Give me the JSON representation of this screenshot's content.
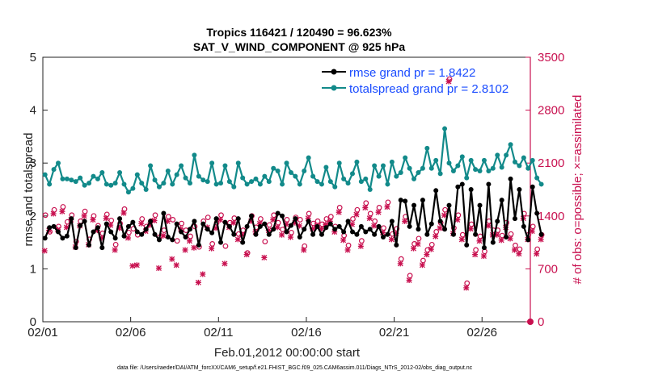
{
  "chart_data": {
    "type": "line",
    "title": "Tropics 116421 / 120490 = 96.623%",
    "subtitle": "SAT_V_WIND_COMPONENT @ 925 hPa",
    "xlabel": "Feb.01,2012 00:00:00 start",
    "ylabel_left": "rmse and totalspread",
    "ylabel_right": "# of obs: o=possible; ×=assimilated",
    "footer": "data file: /Users/raeder/DAI/ATM_forcXX/CAM6_setup/f.e21.FHIST_BGC.f09_025.CAM6assim.011/Diags_NTrS_2012-02/obs_diag_output.nc",
    "x_ticks": [
      "02/01",
      "02/06",
      "02/11",
      "02/16",
      "02/21",
      "02/26"
    ],
    "x_tick_days": [
      0,
      5,
      10,
      15,
      20,
      25
    ],
    "xlim": [
      0,
      27.75
    ],
    "ylim_left": [
      0,
      5
    ],
    "yticks_left": [
      "0",
      "1",
      "2",
      "3",
      "4",
      "5"
    ],
    "ylim_right": [
      0,
      3500
    ],
    "yticks_right": [
      "0",
      "700",
      "1400",
      "2100",
      "2800",
      "3500"
    ],
    "legend": {
      "position": "top-right",
      "entries": [
        "rmse grand pr = 1.8422",
        "totalspread grand pr = 2.8102"
      ]
    },
    "colors": {
      "rmse": "#000000",
      "totalspread": "#128a8a",
      "obs": "#c8104f"
    },
    "x_step_days": 0.25,
    "series": [
      {
        "name": "rmse",
        "axis": "left",
        "values": [
          1.58,
          1.78,
          1.8,
          1.7,
          1.58,
          1.62,
          1.95,
          1.4,
          1.82,
          1.9,
          1.45,
          1.7,
          1.78,
          1.4,
          1.85,
          1.7,
          1.58,
          1.95,
          1.62,
          1.8,
          1.88,
          1.7,
          1.65,
          1.75,
          1.9,
          1.65,
          1.55,
          2.05,
          1.6,
          1.55,
          1.85,
          1.7,
          1.6,
          1.75,
          1.9,
          1.45,
          1.85,
          1.75,
          1.68,
          1.95,
          1.5,
          1.88,
          1.8,
          1.65,
          1.95,
          1.5,
          1.8,
          2.0,
          1.65,
          1.8,
          1.85,
          1.65,
          1.75,
          2.05,
          2.0,
          1.7,
          1.82,
          1.95,
          1.6,
          1.75,
          1.9,
          1.65,
          1.8,
          1.65,
          1.78,
          1.85,
          1.75,
          1.8,
          1.7,
          1.9,
          1.7,
          1.65,
          1.8,
          1.7,
          1.75,
          1.65,
          1.8,
          1.6,
          1.65,
          1.9,
          1.45,
          2.3,
          2.28,
          1.8,
          2.2,
          1.75,
          2.3,
          1.65,
          1.85,
          2.48,
          1.9,
          1.75,
          2.2,
          1.65,
          2.55,
          2.6,
          1.45,
          2.5,
          1.65,
          2.2,
          1.4,
          2.6,
          1.5,
          1.9,
          2.3,
          1.6,
          2.7,
          1.95,
          2.5,
          1.8,
          1.55,
          2.55,
          2.05,
          1.65
        ]
      },
      {
        "name": "totalspread",
        "axis": "left",
        "values": [
          2.78,
          2.6,
          2.88,
          3.0,
          2.7,
          2.7,
          2.68,
          2.65,
          2.72,
          2.58,
          2.62,
          2.75,
          2.7,
          2.82,
          2.6,
          2.58,
          2.62,
          2.82,
          2.6,
          2.45,
          2.52,
          2.78,
          2.62,
          2.5,
          2.95,
          2.68,
          2.55,
          2.62,
          2.85,
          2.6,
          2.78,
          2.95,
          2.72,
          2.62,
          3.15,
          2.75,
          2.68,
          2.65,
          3.0,
          2.6,
          2.62,
          2.95,
          2.65,
          2.55,
          3.0,
          2.72,
          2.6,
          2.65,
          2.7,
          2.6,
          2.75,
          2.65,
          2.9,
          2.85,
          2.6,
          3.0,
          2.82,
          2.75,
          2.6,
          2.85,
          3.1,
          2.75,
          2.65,
          2.6,
          2.92,
          2.65,
          2.55,
          3.0,
          2.7,
          2.62,
          2.8,
          3.02,
          2.65,
          2.7,
          2.5,
          2.95,
          2.75,
          2.95,
          2.6,
          3.02,
          2.75,
          2.82,
          3.1,
          2.9,
          2.7,
          2.82,
          2.9,
          3.28,
          2.9,
          3.05,
          2.8,
          3.65,
          3.0,
          2.85,
          2.95,
          3.12,
          2.72,
          3.05,
          2.88,
          2.85,
          3.05,
          2.85,
          2.9,
          3.15,
          2.92,
          3.15,
          3.35,
          3.02,
          2.95,
          3.1,
          2.9,
          3.05,
          2.72,
          2.6
        ]
      },
      {
        "name": "obs possible (o)",
        "axis": "right",
        "values": [
          1400,
          1180,
          1470,
          1250,
          1510,
          1310,
          1400,
          1050,
          1320,
          1450,
          1080,
          1390,
          1260,
          1160,
          1410,
          1330,
          1010,
          1290,
          1480,
          1170,
          1220,
          1140,
          1350,
          1250,
          1320,
          1400,
          1110,
          1200,
          1380,
          1340,
          1060,
          1290,
          1200,
          1120,
          1250,
          980,
          1320,
          1370,
          1020,
          1300,
          1400,
          990,
          1300,
          1360,
          1150,
          1200,
          900,
          1390,
          1240,
          1350,
          1050,
          1270,
          1400,
          1300,
          1210,
          1340,
          1170,
          1370,
          1340,
          990,
          1420,
          1290,
          1320,
          1280,
          1350,
          1380,
          1250,
          1500,
          1130,
          1000,
          1350,
          1470,
          1060,
          1560,
          1420,
          1320,
          1500,
          1230,
          1570,
          1150,
          1220,
          820,
          1380,
          600,
          1020,
          1090,
          800,
          940,
          1010,
          1180,
          1300,
          1470,
          3200,
          1230,
          1400,
          1140,
          500,
          1280,
          940,
          1120,
          920,
          1320,
          1200,
          1200,
          1130,
          1300,
          1150,
          1000,
          950,
          1420,
          1140,
          1250,
          950,
          1140
        ]
      },
      {
        "name": "obs assimilated (×)",
        "axis": "right",
        "values": [
          950,
          1220,
          1440,
          1230,
          1470,
          1260,
          1360,
          1000,
          1280,
          1410,
          1030,
          1360,
          1220,
          1120,
          1380,
          1290,
          960,
          1250,
          1450,
          1120,
          750,
          760,
          1310,
          1210,
          1290,
          1350,
          720,
          1150,
          1340,
          840,
          760,
          1240,
          960,
          1080,
          990,
          530,
          640,
          1260,
          980,
          1250,
          1360,
          780,
          1260,
          1320,
          1100,
          1160,
          900,
          1340,
          1200,
          1310,
          860,
          1220,
          1360,
          1260,
          1160,
          1300,
          1130,
          1320,
          1280,
          960,
          1380,
          1240,
          1280,
          1240,
          1300,
          1340,
          1200,
          1460,
          1090,
          960,
          1300,
          1430,
          1010,
          1520,
          1380,
          1280,
          1460,
          1190,
          1530,
          1100,
          1180,
          780,
          1340,
          560,
          980,
          1040,
          760,
          900,
          970,
          1140,
          1250,
          1420,
          3190,
          1180,
          1360,
          1100,
          460,
          1240,
          900,
          1080,
          880,
          1280,
          1160,
          1160,
          1090,
          1260,
          1110,
          960,
          910,
          1380,
          1100,
          1210,
          910,
          1100
        ]
      }
    ]
  }
}
